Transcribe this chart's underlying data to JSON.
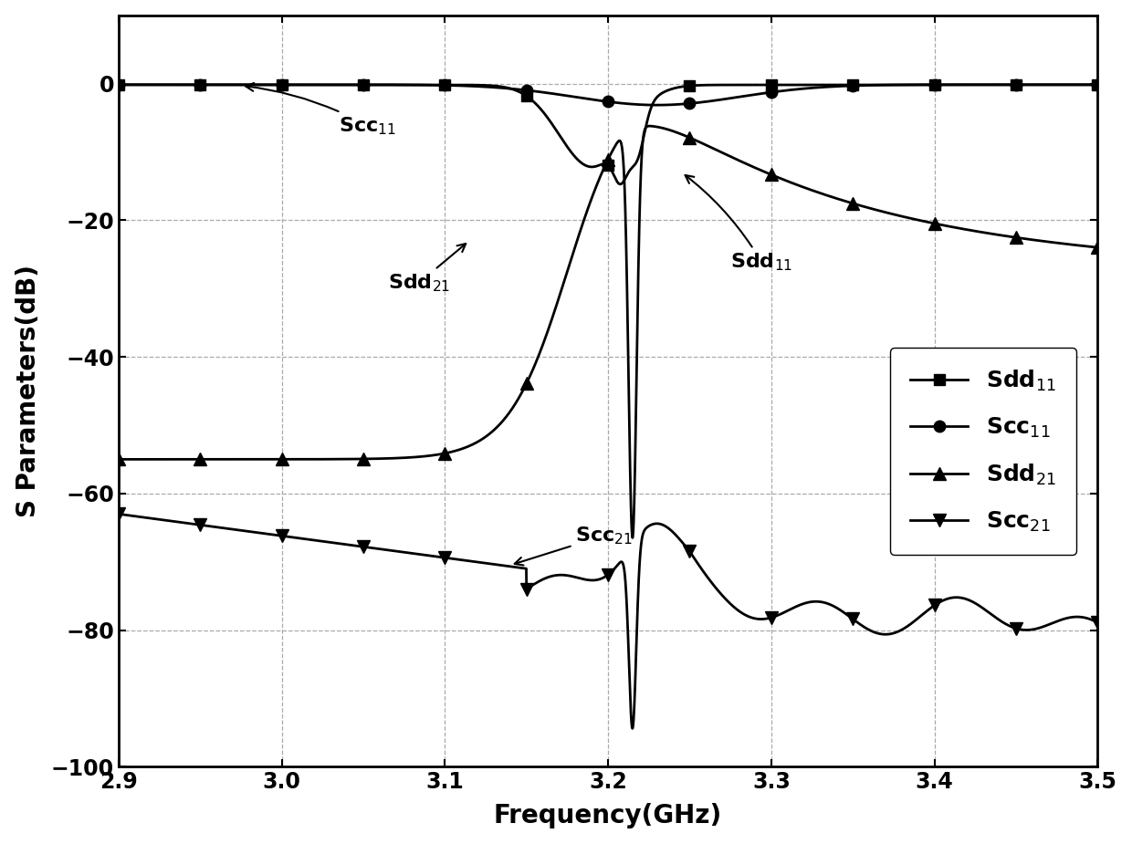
{
  "title": "",
  "xlabel": "Frequency(GHz)",
  "ylabel": "S Parameters(dB)",
  "xlim": [
    2.9,
    3.5
  ],
  "ylim": [
    -100,
    10
  ],
  "yticks": [
    -100,
    -80,
    -60,
    -40,
    -20,
    0
  ],
  "xticks": [
    2.9,
    3.0,
    3.1,
    3.2,
    3.3,
    3.4,
    3.5
  ],
  "background_color": "#ffffff",
  "marker_freq": [
    2.9,
    2.95,
    3.0,
    3.05,
    3.1,
    3.15,
    3.2,
    3.25,
    3.3,
    3.35,
    3.4,
    3.45,
    3.5
  ]
}
